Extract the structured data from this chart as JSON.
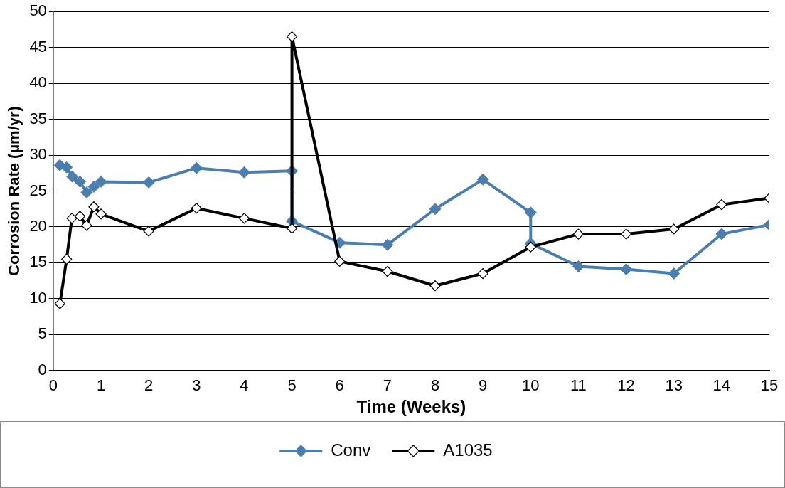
{
  "chart_data": {
    "type": "line",
    "xlabel": "Time (Weeks)",
    "ylabel": "Corrosion Rate (µm/yr)",
    "xlim": [
      0,
      15
    ],
    "xticks": [
      0,
      1,
      2,
      3,
      4,
      5,
      6,
      7,
      8,
      9,
      10,
      11,
      12,
      13,
      14,
      15
    ],
    "ylim": [
      0,
      50
    ],
    "yticks": [
      0,
      5,
      10,
      15,
      20,
      25,
      30,
      35,
      40,
      45,
      50
    ],
    "grid": "y",
    "legend": "bottom",
    "marker": "diamond",
    "line_style": "solid",
    "series": [
      {
        "name": "Conv",
        "color": "#4a7eb0",
        "x": [
          0.14,
          0.28,
          0.4,
          0.56,
          0.7,
          0.85,
          1,
          2,
          3,
          4,
          5,
          5,
          6,
          7,
          8,
          9,
          10,
          10,
          11,
          12,
          13,
          14,
          15
        ],
        "values": [
          28.6,
          28.3,
          27.0,
          26.3,
          24.8,
          25.6,
          26.3,
          26.2,
          28.2,
          27.6,
          27.8,
          20.8,
          17.8,
          17.5,
          22.5,
          26.6,
          22.0,
          17.7,
          14.5,
          14.1,
          13.5,
          19.0,
          20.3
        ]
      },
      {
        "name": "A1035",
        "color": "#000000",
        "x": [
          0.14,
          0.28,
          0.39,
          0.56,
          0.7,
          0.85,
          1,
          2,
          3,
          4,
          5,
          5,
          6,
          7,
          8,
          9,
          10,
          11,
          12,
          13,
          14,
          15
        ],
        "values": [
          9.3,
          15.5,
          21.2,
          21.5,
          20.2,
          22.8,
          21.8,
          19.4,
          22.6,
          21.2,
          19.8,
          46.5,
          15.2,
          13.8,
          11.8,
          13.5,
          17.2,
          19.0,
          19.0,
          19.7,
          23.1,
          24.0
        ]
      }
    ]
  }
}
